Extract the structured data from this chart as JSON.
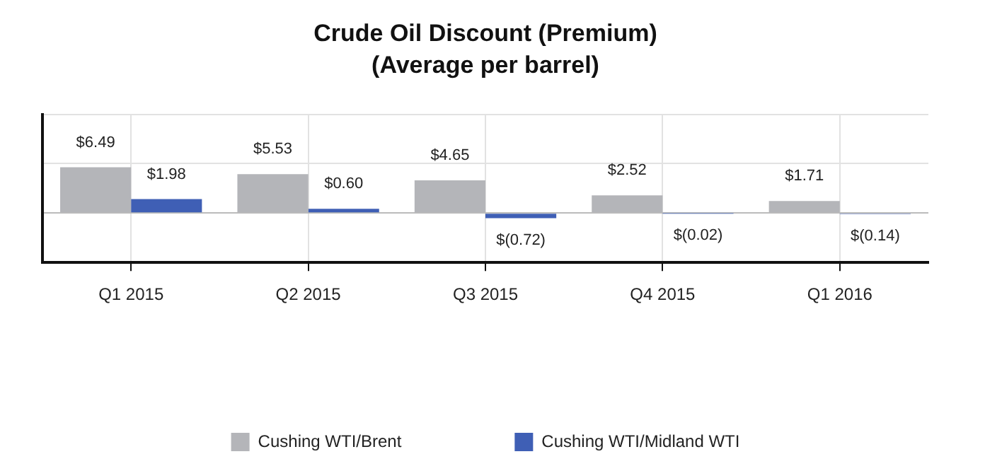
{
  "chart_data": {
    "type": "bar",
    "title": "Crude Oil Discount (Premium)",
    "subtitle": "(Average per barrel)",
    "categories": [
      "Q1 2015",
      "Q2 2015",
      "Q3 2015",
      "Q4 2015",
      "Q1 2016"
    ],
    "series": [
      {
        "name": "Cushing WTI/Brent",
        "color": "#b4b5b9",
        "values": [
          6.49,
          5.53,
          4.65,
          2.52,
          1.71
        ],
        "value_labels": [
          "$6.49",
          "$5.53",
          "$4.65",
          "$2.52",
          "$1.71"
        ]
      },
      {
        "name": "Cushing WTI/Midland WTI",
        "color": "#3f5fb5",
        "values": [
          1.98,
          0.6,
          -0.72,
          -0.02,
          -0.14
        ],
        "value_labels": [
          "$1.98",
          "$0.60",
          "$(0.72)",
          "$(0.02)",
          "$(0.14)"
        ]
      }
    ],
    "ylim": [
      -7,
      14
    ],
    "yticks": [
      {
        "value": -7,
        "label": null
      },
      {
        "value": 0,
        "label": null
      },
      {
        "value": 7,
        "label": null
      },
      {
        "value": 14,
        "label": null
      }
    ],
    "tick_labels": "x",
    "grid": true,
    "legend": "bottom"
  }
}
